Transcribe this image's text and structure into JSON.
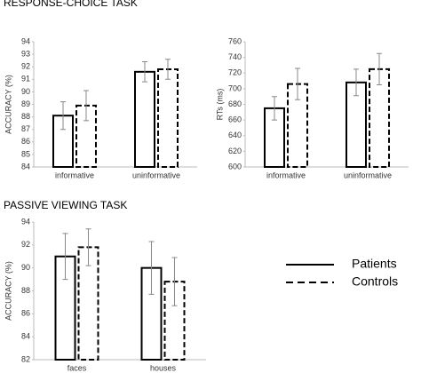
{
  "chart_data": [
    {
      "type": "bar",
      "section_title": "RESPONSE-CHOICE TASK",
      "ylabel": "ACCURACY (%)",
      "categories": [
        "informative",
        "uninformative"
      ],
      "series": [
        {
          "color": "#000000",
          "dash": false,
          "values": [
            88.1,
            91.6
          ],
          "errors": [
            1.1,
            0.8
          ]
        },
        {
          "color": "#000000",
          "dash": true,
          "values": [
            88.9,
            91.8
          ],
          "errors": [
            1.2,
            0.8
          ]
        }
      ],
      "ylim": [
        84,
        94
      ],
      "yticks": [
        84,
        85,
        86,
        87,
        88,
        89,
        90,
        91,
        92,
        93,
        94
      ]
    },
    {
      "type": "bar",
      "ylabel": "RTs (ms)",
      "categories": [
        "informative",
        "uninformative"
      ],
      "series": [
        {
          "color": "#000000",
          "dash": false,
          "values": [
            675,
            708
          ],
          "errors": [
            15,
            17
          ]
        },
        {
          "color": "#000000",
          "dash": true,
          "values": [
            706,
            725
          ],
          "errors": [
            20,
            20
          ]
        }
      ],
      "ylim": [
        600,
        760
      ],
      "yticks": [
        600,
        620,
        640,
        660,
        680,
        700,
        720,
        740,
        760
      ]
    },
    {
      "type": "bar",
      "section_title": "PASSIVE VIEWING TASK",
      "ylabel": "ACCURACY (%)",
      "categories": [
        "faces",
        "houses"
      ],
      "series": [
        {
          "name": "Patients",
          "color": "#000000",
          "dash": false,
          "values": [
            91.0,
            90.0
          ],
          "errors": [
            2.0,
            2.3
          ]
        },
        {
          "name": "Controls",
          "color": "#000000",
          "dash": true,
          "values": [
            91.8,
            88.8
          ],
          "errors": [
            1.6,
            2.1
          ]
        }
      ],
      "ylim": [
        82,
        94
      ],
      "yticks": [
        82,
        84,
        86,
        88,
        90,
        92,
        94
      ]
    }
  ]
}
